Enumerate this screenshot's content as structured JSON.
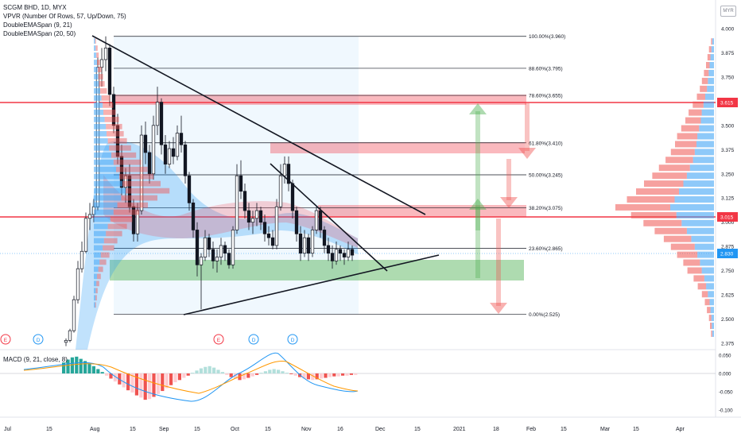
{
  "legend": {
    "symbol": "SCGM BHD, 1D, MYX",
    "vpvr": "VPVR (Number Of Rows, 57, Up/Down, 75)",
    "ema1": "DoubleEMASpan (9, 21)",
    "ema2": "DoubleEMASpan (20, 50)"
  },
  "macd": {
    "label": "MACD (9, 21, close, 8)"
  },
  "currency": "MYR",
  "colors": {
    "up": "#26a69a",
    "down": "#ef5350",
    "resistance": "#f23645",
    "support_zone": "#4caf50",
    "vol_up": "#42a5f5",
    "vol_down": "#ef5350",
    "ema_fill": "#2196f3",
    "macd_line": "#2196f3",
    "signal_line": "#ff9800"
  },
  "price_axis": {
    "ticks": [
      "4.000",
      "3.875",
      "3.750",
      "3.625",
      "3.500",
      "3.375",
      "3.250",
      "3.125",
      "3.000",
      "2.875",
      "2.750",
      "2.625",
      "2.500",
      "2.375"
    ],
    "badges": [
      {
        "label": "3.615",
        "color": "#f23645"
      },
      {
        "label": "3.015",
        "color": "#f23645"
      },
      {
        "label": "2.830",
        "color": "#2196f3"
      }
    ]
  },
  "macd_axis": {
    "ticks": [
      "0.050",
      "0.000",
      "-0.050",
      "-0.100"
    ]
  },
  "time_axis": [
    "Jul",
    "15",
    "Aug",
    "15",
    "Sep",
    "15",
    "Oct",
    "15",
    "Nov",
    "16",
    "Dec",
    "15",
    "2021",
    "18",
    "Feb",
    "15",
    "Mar",
    "15",
    "Apr"
  ],
  "fibonacci": [
    {
      "label": "100.00%(3.960)",
      "price": 3.96
    },
    {
      "label": "88.60%(3.795)",
      "price": 3.795
    },
    {
      "label": "78.60%(3.655)",
      "price": 3.655
    },
    {
      "label": "61.80%(3.410)",
      "price": 3.41
    },
    {
      "label": "50.00%(3.245)",
      "price": 3.245
    },
    {
      "label": "38.20%(3.075)",
      "price": 3.075
    },
    {
      "label": "23.60%(2.865)",
      "price": 2.865
    },
    {
      "label": "0.00%(2.525)",
      "price": 2.525
    }
  ],
  "resistance_levels": [
    3.615,
    3.015
  ],
  "event_markers": [
    "E",
    "D",
    "E",
    "D",
    "D"
  ],
  "chart_data": {
    "type": "candlestick",
    "title": "SCGM BHD, 1D, MYX",
    "ylim": [
      2.32,
      4.02
    ],
    "current_price": 2.83,
    "candles_ohlc": [
      [
        2.38,
        2.4,
        2.36,
        2.39
      ],
      [
        2.39,
        2.45,
        2.38,
        2.44
      ],
      [
        2.44,
        2.62,
        2.43,
        2.6
      ],
      [
        2.6,
        2.8,
        2.58,
        2.76
      ],
      [
        2.76,
        2.9,
        2.74,
        2.85
      ],
      [
        2.85,
        3.05,
        2.84,
        3.02
      ],
      [
        3.02,
        3.1,
        2.96,
        3.04
      ],
      [
        3.04,
        3.12,
        3.0,
        3.08
      ],
      [
        3.08,
        3.85,
        3.06,
        3.8
      ],
      [
        3.8,
        3.9,
        3.7,
        3.84
      ],
      [
        3.84,
        3.96,
        3.78,
        3.9
      ],
      [
        3.9,
        3.92,
        3.6,
        3.66
      ],
      [
        3.66,
        3.7,
        3.46,
        3.5
      ],
      [
        3.5,
        3.56,
        3.3,
        3.34
      ],
      [
        3.34,
        3.4,
        3.14,
        3.18
      ],
      [
        3.18,
        3.28,
        3.1,
        3.24
      ],
      [
        3.24,
        3.3,
        3.05,
        3.08
      ],
      [
        3.08,
        3.12,
        2.9,
        2.94
      ],
      [
        2.94,
        3.1,
        2.9,
        3.06
      ],
      [
        3.06,
        3.5,
        3.04,
        3.45
      ],
      [
        3.45,
        3.52,
        3.3,
        3.36
      ],
      [
        3.36,
        3.4,
        3.2,
        3.25
      ],
      [
        3.25,
        3.55,
        3.22,
        3.5
      ],
      [
        3.5,
        3.7,
        3.45,
        3.62
      ],
      [
        3.62,
        3.64,
        3.35,
        3.4
      ],
      [
        3.4,
        3.45,
        3.25,
        3.3
      ],
      [
        3.3,
        3.42,
        3.28,
        3.38
      ],
      [
        3.38,
        3.44,
        3.3,
        3.34
      ],
      [
        3.34,
        3.5,
        3.32,
        3.46
      ],
      [
        3.46,
        3.55,
        3.36,
        3.4
      ],
      [
        3.4,
        3.42,
        3.2,
        3.24
      ],
      [
        3.24,
        3.26,
        3.06,
        3.1
      ],
      [
        3.1,
        3.12,
        2.92,
        2.96
      ],
      [
        2.96,
        3.0,
        2.72,
        2.78
      ],
      [
        2.78,
        2.84,
        2.55,
        2.82
      ],
      [
        2.82,
        2.96,
        2.8,
        2.92
      ],
      [
        2.92,
        2.94,
        2.82,
        2.86
      ],
      [
        2.86,
        2.9,
        2.76,
        2.8
      ],
      [
        2.8,
        2.86,
        2.74,
        2.82
      ],
      [
        2.82,
        2.92,
        2.78,
        2.88
      ],
      [
        2.88,
        2.9,
        2.8,
        2.84
      ],
      [
        2.84,
        2.86,
        2.76,
        2.78
      ],
      [
        2.78,
        2.98,
        2.76,
        2.96
      ],
      [
        2.96,
        3.3,
        2.94,
        3.24
      ],
      [
        3.24,
        3.32,
        3.12,
        3.16
      ],
      [
        3.16,
        3.2,
        3.02,
        3.06
      ],
      [
        3.06,
        3.1,
        2.96,
        3.0
      ],
      [
        3.0,
        3.06,
        2.94,
        3.02
      ],
      [
        3.02,
        3.1,
        2.98,
        3.06
      ],
      [
        3.06,
        3.08,
        2.96,
        3.0
      ],
      [
        3.0,
        3.04,
        2.9,
        2.94
      ],
      [
        2.94,
        2.98,
        2.88,
        2.92
      ],
      [
        2.92,
        2.96,
        2.86,
        2.88
      ],
      [
        2.88,
        3.12,
        2.86,
        3.08
      ],
      [
        3.08,
        3.3,
        3.06,
        3.24
      ],
      [
        3.24,
        3.34,
        3.2,
        3.3
      ],
      [
        3.3,
        3.34,
        3.16,
        3.2
      ],
      [
        3.2,
        3.22,
        3.02,
        3.06
      ],
      [
        3.06,
        3.08,
        2.9,
        2.94
      ],
      [
        2.94,
        2.98,
        2.8,
        2.84
      ],
      [
        2.84,
        2.96,
        2.82,
        2.92
      ],
      [
        2.92,
        2.94,
        2.8,
        2.84
      ],
      [
        2.84,
        2.98,
        2.82,
        2.96
      ],
      [
        2.96,
        3.08,
        2.94,
        3.06
      ],
      [
        3.06,
        3.08,
        2.92,
        2.96
      ],
      [
        2.96,
        2.98,
        2.84,
        2.88
      ],
      [
        2.88,
        2.92,
        2.8,
        2.84
      ],
      [
        2.84,
        2.88,
        2.76,
        2.8
      ],
      [
        2.8,
        2.9,
        2.78,
        2.86
      ],
      [
        2.86,
        2.88,
        2.8,
        2.84
      ],
      [
        2.84,
        2.86,
        2.78,
        2.82
      ],
      [
        2.82,
        2.9,
        2.8,
        2.86
      ],
      [
        2.86,
        2.88,
        2.8,
        2.83
      ]
    ],
    "vpvr_profile_up_down": [
      [
        0.04,
        0.02
      ],
      [
        0.06,
        0.04
      ],
      [
        0.08,
        0.05
      ],
      [
        0.1,
        0.06
      ],
      [
        0.12,
        0.08
      ],
      [
        0.14,
        0.1
      ],
      [
        0.16,
        0.12
      ],
      [
        0.2,
        0.14
      ],
      [
        0.24,
        0.18
      ],
      [
        0.28,
        0.22
      ],
      [
        0.3,
        0.26
      ],
      [
        0.34,
        0.3
      ],
      [
        0.38,
        0.34
      ],
      [
        0.4,
        0.36
      ],
      [
        0.44,
        0.4
      ],
      [
        0.48,
        0.46
      ],
      [
        0.55,
        0.52
      ],
      [
        0.62,
        0.58
      ],
      [
        0.7,
        0.66
      ],
      [
        0.8,
        0.72
      ],
      [
        0.9,
        0.8
      ],
      [
        1.0,
        0.92
      ],
      [
        0.86,
        0.76
      ],
      [
        0.74,
        0.64
      ],
      [
        0.62,
        0.54
      ],
      [
        0.52,
        0.46
      ],
      [
        0.44,
        0.4
      ],
      [
        0.38,
        0.34
      ],
      [
        0.32,
        0.28
      ],
      [
        0.28,
        0.24
      ],
      [
        0.22,
        0.18
      ],
      [
        0.18,
        0.14
      ],
      [
        0.14,
        0.1
      ],
      [
        0.1,
        0.08
      ],
      [
        0.08,
        0.06
      ],
      [
        0.06,
        0.04
      ],
      [
        0.05,
        0.03
      ],
      [
        0.04,
        0.02
      ]
    ],
    "macd_histogram": [
      0.03,
      0.038,
      0.044,
      0.046,
      0.04,
      0.034,
      0.028,
      0.02,
      0.012,
      0.004,
      -0.006,
      -0.014,
      -0.022,
      -0.03,
      -0.038,
      -0.046,
      -0.052,
      -0.06,
      -0.066,
      -0.072,
      -0.07,
      -0.064,
      -0.056,
      -0.048,
      -0.04,
      -0.032,
      -0.024,
      -0.018,
      -0.012,
      -0.006,
      0.002,
      0.008,
      0.014,
      0.018,
      0.02,
      0.016,
      0.01,
      0.004,
      -0.004,
      -0.01,
      -0.014,
      -0.018,
      -0.016,
      -0.012,
      -0.008,
      -0.004,
      0.002,
      0.006,
      0.01,
      0.012,
      0.01,
      0.006,
      0.002,
      -0.002,
      -0.006,
      -0.01,
      -0.014,
      -0.016,
      -0.018,
      -0.016,
      -0.014,
      -0.012,
      -0.01,
      -0.008,
      -0.008,
      -0.006,
      -0.006,
      -0.004,
      -0.004
    ]
  }
}
